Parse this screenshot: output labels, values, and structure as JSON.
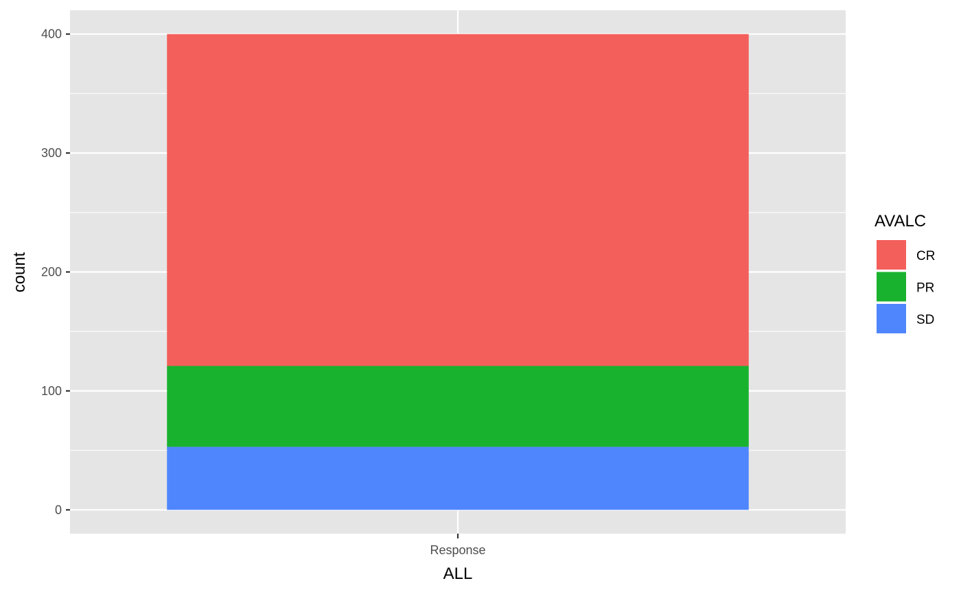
{
  "chart_data": {
    "type": "bar",
    "stacked": true,
    "categories": [
      "Response"
    ],
    "series": [
      {
        "name": "SD",
        "values": [
          53
        ],
        "color": "#4f86fd"
      },
      {
        "name": "PR",
        "values": [
          68
        ],
        "color": "#19b22e"
      },
      {
        "name": "CR",
        "values": [
          279
        ],
        "color": "#f35f5b"
      }
    ],
    "xlabel": "ALL",
    "ylabel": "count",
    "ylim": [
      -20,
      420
    ],
    "yticks": [
      0,
      100,
      200,
      300,
      400
    ],
    "ytick_labels": [
      "0",
      "100",
      "200",
      "300",
      "400"
    ],
    "legend": {
      "title": "AVALC",
      "placement": "right",
      "entries": [
        "CR",
        "PR",
        "SD"
      ]
    },
    "grid": true,
    "panel_background": "#e5e5e5",
    "grid_color": "#ffffff"
  }
}
